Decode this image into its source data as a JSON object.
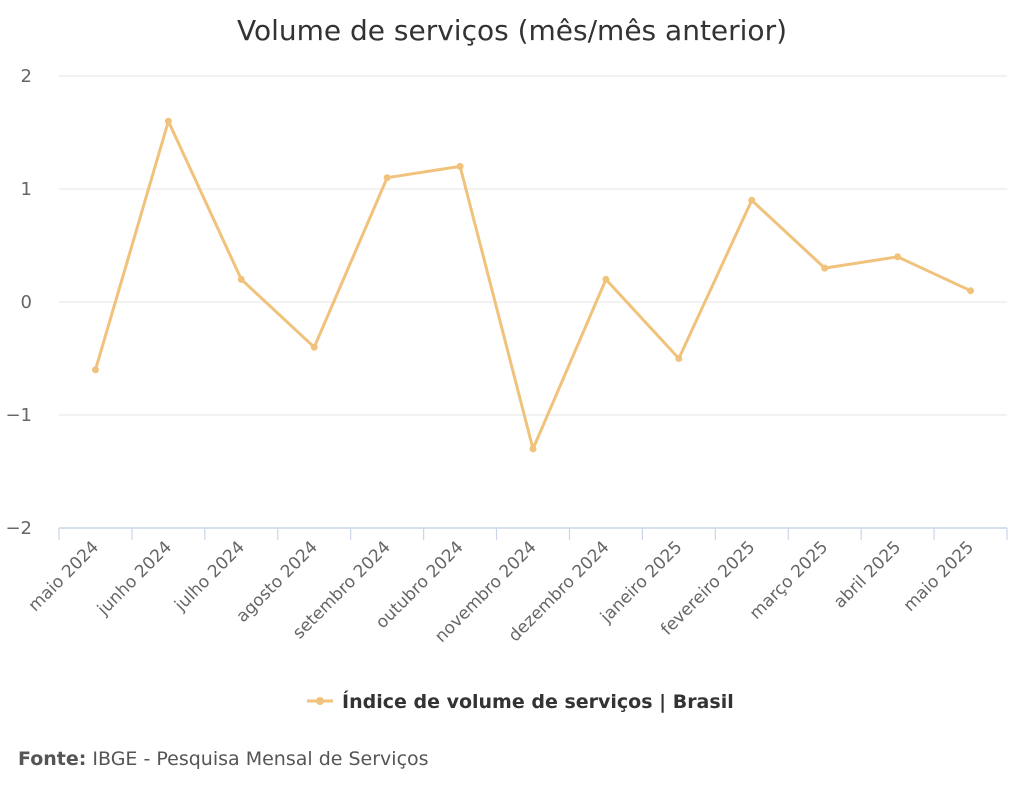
{
  "source": {
    "label": "Fonte:",
    "text": "IBGE - Pesquisa Mensal de Serviços"
  },
  "chart_data": {
    "type": "line",
    "title": "Volume de serviços (mês/mês anterior)",
    "xlabel": "",
    "ylabel": "",
    "categories": [
      "maio 2024",
      "junho 2024",
      "julho 2024",
      "agosto 2024",
      "setembro 2024",
      "outubro 2024",
      "novembro 2024",
      "dezembro 2024",
      "janeiro 2025",
      "fevereiro 2025",
      "março 2025",
      "abril 2025",
      "maio 2025"
    ],
    "series": [
      {
        "name": "Índice de volume de serviços | Brasil",
        "color": "#f0c27b",
        "values": [
          -0.6,
          1.6,
          0.2,
          -0.4,
          1.1,
          1.2,
          -1.3,
          0.2,
          -0.5,
          0.9,
          0.3,
          0.4,
          0.1
        ]
      }
    ],
    "ylim": [
      -2,
      2
    ],
    "yticks": [
      2,
      1,
      0,
      -1,
      -2
    ],
    "ytick_labels": [
      "2",
      "1",
      "0",
      "−1",
      "−2"
    ],
    "grid": true,
    "legend": "bottom-center"
  }
}
